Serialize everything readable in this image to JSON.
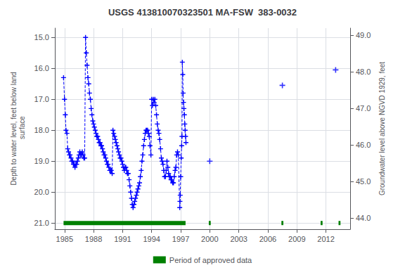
{
  "chart_data": {
    "type": "line",
    "title": "USGS 413810070323501 MA-FSW  383-0032",
    "ylabel": "Depth to water level, feet below land\n surface",
    "y2label": "Groundwater level above NGVD 1929, feet",
    "xlim": [
      1984.0,
      2014.5
    ],
    "xticks": [
      1985,
      1988,
      1991,
      1994,
      1997,
      2000,
      2003,
      2006,
      2009,
      2012
    ],
    "ylim": [
      21.2,
      14.7
    ],
    "yticks": [
      {
        "value": 15.0,
        "label": "15.0"
      },
      {
        "value": 16.0,
        "label": "16.0"
      },
      {
        "value": 17.0,
        "label": "17.0"
      },
      {
        "value": 18.0,
        "label": "18.0"
      },
      {
        "value": 19.0,
        "label": "19.0"
      },
      {
        "value": 20.0,
        "label": "20.0"
      },
      {
        "value": 21.0,
        "label": "21.0"
      }
    ],
    "y2lim": [
      43.7,
      49.2
    ],
    "y2ticks": [
      {
        "value": 49.0,
        "label": "49.0"
      },
      {
        "value": 48.0,
        "label": "48.0"
      },
      {
        "value": 47.0,
        "label": "47.0"
      },
      {
        "value": 46.0,
        "label": "46.0"
      },
      {
        "value": 45.0,
        "label": "45.0"
      },
      {
        "value": 44.0,
        "label": "44.0"
      }
    ],
    "grid": true,
    "legend": "bottom",
    "series": [
      {
        "type": "line",
        "color": "#0000FF",
        "line_style": "dashed",
        "marker": "plus",
        "x": [
          1984.9,
          1985.0,
          1985.08,
          1985.15,
          1985.25,
          1985.33,
          1985.42,
          1985.5,
          1985.58,
          1985.67,
          1985.75,
          1985.83,
          1985.92,
          1986.0,
          1986.08,
          1986.17,
          1986.25,
          1986.33,
          1986.42,
          1986.5,
          1986.58,
          1986.67,
          1986.75,
          1986.83,
          1986.92,
          1987.0,
          1987.08,
          1987.17,
          1987.25,
          1987.33,
          1987.42,
          1987.5,
          1987.58,
          1987.67,
          1987.75,
          1987.83,
          1987.92,
          1988.0,
          1988.08,
          1988.17,
          1988.25,
          1988.33,
          1988.42,
          1988.5,
          1988.58,
          1988.67,
          1988.75,
          1988.83,
          1988.92,
          1989.0,
          1989.08,
          1989.17,
          1989.25,
          1989.33,
          1989.42,
          1989.5,
          1989.58,
          1989.67,
          1989.75,
          1989.83,
          1989.92,
          1990.0,
          1990.08,
          1990.17,
          1990.25,
          1990.33,
          1990.42,
          1990.5,
          1990.58,
          1990.67,
          1990.75,
          1990.83,
          1990.92,
          1991.0,
          1991.08,
          1991.17,
          1991.25,
          1991.33,
          1991.42,
          1991.5,
          1991.58,
          1991.67,
          1991.75,
          1991.83,
          1991.92,
          1992.0,
          1992.08,
          1992.17,
          1992.25,
          1992.33,
          1992.42,
          1992.5,
          1992.58,
          1992.67,
          1992.75,
          1992.83,
          1992.92,
          1993.0,
          1993.08,
          1993.17,
          1993.25,
          1993.33,
          1993.42,
          1993.5,
          1993.58,
          1993.67,
          1993.75,
          1993.83,
          1993.92,
          1994.0,
          1994.08,
          1994.17,
          1994.25,
          1994.33,
          1994.42,
          1994.5,
          1994.58,
          1994.67,
          1994.75,
          1994.83,
          1994.92,
          1995.0,
          1995.08,
          1995.17,
          1995.25,
          1995.33,
          1995.42,
          1995.5,
          1995.58,
          1995.67,
          1995.75,
          1995.83,
          1995.92,
          1996.0,
          1996.08,
          1996.17,
          1996.25,
          1996.33,
          1996.42,
          1996.5,
          1996.58,
          1996.67,
          1996.75,
          1996.9,
          1996.92,
          1996.95,
          1997.0,
          1997.05,
          1997.1,
          1997.13,
          1997.17,
          1997.21,
          1997.25,
          1997.29,
          1997.33,
          1997.38,
          1997.42,
          1997.46,
          1997.5,
          1997.54
        ],
        "values": [
          16.3,
          17.0,
          17.5,
          18.0,
          18.1,
          18.6,
          18.7,
          18.8,
          18.8,
          18.9,
          19.0,
          19.0,
          19.1,
          19.1,
          19.2,
          19.1,
          19.1,
          19.0,
          18.9,
          18.8,
          18.7,
          18.8,
          18.8,
          18.7,
          18.8,
          18.9,
          18.9,
          15.0,
          15.5,
          15.9,
          16.3,
          16.5,
          16.8,
          17.0,
          17.3,
          17.5,
          17.7,
          17.8,
          17.9,
          18.0,
          18.1,
          18.2,
          18.2,
          18.3,
          18.4,
          18.4,
          18.5,
          18.5,
          18.6,
          18.7,
          18.8,
          18.8,
          18.9,
          19.0,
          19.1,
          19.1,
          19.2,
          19.3,
          19.3,
          19.3,
          19.4,
          18.0,
          18.1,
          18.2,
          18.3,
          18.4,
          18.5,
          18.6,
          18.7,
          18.8,
          18.9,
          18.9,
          19.0,
          19.1,
          19.2,
          19.3,
          19.2,
          19.2,
          19.3,
          19.4,
          19.4,
          19.6,
          19.8,
          20.0,
          20.2,
          20.4,
          20.5,
          20.4,
          20.3,
          20.2,
          20.1,
          20.0,
          19.9,
          19.8,
          19.7,
          19.5,
          19.3,
          19.0,
          18.8,
          18.5,
          18.3,
          18.1,
          18.0,
          18.0,
          18.0,
          18.1,
          18.2,
          18.5,
          18.8,
          17.0,
          17.2,
          17.0,
          17.1,
          17.0,
          17.2,
          17.5,
          17.8,
          18.0,
          18.1,
          18.3,
          18.6,
          18.9,
          19.0,
          19.1,
          19.3,
          19.5,
          19.5,
          19.3,
          19.0,
          19.2,
          19.4,
          19.5,
          19.5,
          19.6,
          19.6,
          19.7,
          19.7,
          19.5,
          19.3,
          19.2,
          18.8,
          18.7,
          18.8,
          20.5,
          20.3,
          20.1,
          19.5,
          18.9,
          18.5,
          18.2,
          15.8,
          16.2,
          16.8,
          17.1,
          17.3,
          17.5,
          17.8,
          18.0,
          18.2,
          18.4
        ]
      },
      {
        "type": "scatter",
        "color": "#0000FF",
        "marker": "plus",
        "x": [
          2000.0,
          2007.5,
          2013.0
        ],
        "values": [
          19.0,
          16.55,
          16.05
        ]
      },
      {
        "type": "bar",
        "name": "Period of approved data",
        "color": "#008000",
        "orientation": "horizontal",
        "x": [
          1984.9,
          1999.9,
          2007.4,
          2011.45,
          2013.3
        ],
        "x_end": [
          1997.5,
          2000.1,
          2007.6,
          2011.65,
          2013.5
        ],
        "values": [
          21.0,
          21.0,
          21.0,
          21.0,
          21.0
        ]
      }
    ]
  }
}
